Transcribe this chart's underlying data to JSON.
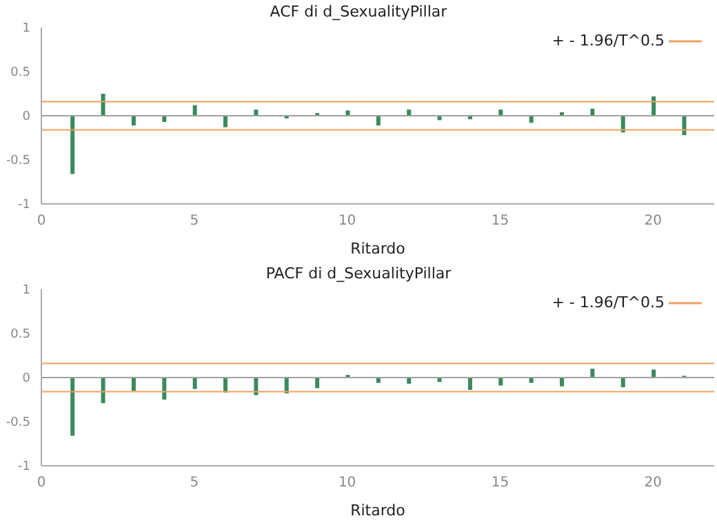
{
  "chart_data": [
    {
      "type": "bar",
      "title": "ACF di d_SexualityPillar",
      "xlabel": "Ritardo",
      "x": [
        1,
        2,
        3,
        4,
        5,
        6,
        7,
        8,
        9,
        10,
        11,
        12,
        13,
        14,
        15,
        16,
        17,
        18,
        19,
        20,
        21
      ],
      "series": [
        {
          "color": "#3a8a5e",
          "values": [
            -0.66,
            0.25,
            -0.11,
            -0.07,
            0.12,
            -0.13,
            0.07,
            -0.03,
            0.03,
            0.06,
            -0.11,
            0.07,
            -0.05,
            -0.04,
            0.07,
            -0.08,
            0.04,
            0.08,
            -0.19,
            0.22,
            -0.22
          ]
        }
      ],
      "xlim": [
        0,
        22
      ],
      "xticks": [
        0,
        5,
        10,
        15,
        20
      ],
      "ylim": [
        -1,
        1
      ],
      "yticks": [
        -1,
        -0.5,
        0,
        0.5,
        1
      ],
      "ref_lines": [
        {
          "axis": "y",
          "value": 0.16,
          "label": "+ - 1.96/T^0.5",
          "color": "#f0a060"
        },
        {
          "axis": "y",
          "value": -0.16,
          "color": "#f0a060"
        },
        {
          "axis": "y",
          "value": 0,
          "color": "#a0a0a0"
        }
      ],
      "grid": false,
      "legend": "top right"
    },
    {
      "type": "bar",
      "title": "PACF di d_SexualityPillar",
      "xlabel": "Ritardo",
      "x": [
        1,
        2,
        3,
        4,
        5,
        6,
        7,
        8,
        9,
        10,
        11,
        12,
        13,
        14,
        15,
        16,
        17,
        18,
        19,
        20,
        21
      ],
      "series": [
        {
          "color": "#3a8a5e",
          "values": [
            -0.66,
            -0.29,
            -0.15,
            -0.25,
            -0.13,
            -0.17,
            -0.2,
            -0.18,
            -0.12,
            0.03,
            -0.06,
            -0.07,
            -0.05,
            -0.14,
            -0.09,
            -0.06,
            -0.1,
            0.1,
            -0.11,
            0.09,
            0.02
          ]
        }
      ],
      "xlim": [
        0,
        22
      ],
      "xticks": [
        0,
        5,
        10,
        15,
        20
      ],
      "ylim": [
        -1,
        1
      ],
      "yticks": [
        -1,
        -0.5,
        0,
        0.5,
        1
      ],
      "ref_lines": [
        {
          "axis": "y",
          "value": 0.16,
          "label": "+ - 1.96/T^0.5",
          "color": "#f0a060"
        },
        {
          "axis": "y",
          "value": -0.16,
          "color": "#f0a060"
        },
        {
          "axis": "y",
          "value": 0,
          "color": "#a0a0a0"
        }
      ],
      "grid": false,
      "legend": "top right"
    }
  ]
}
